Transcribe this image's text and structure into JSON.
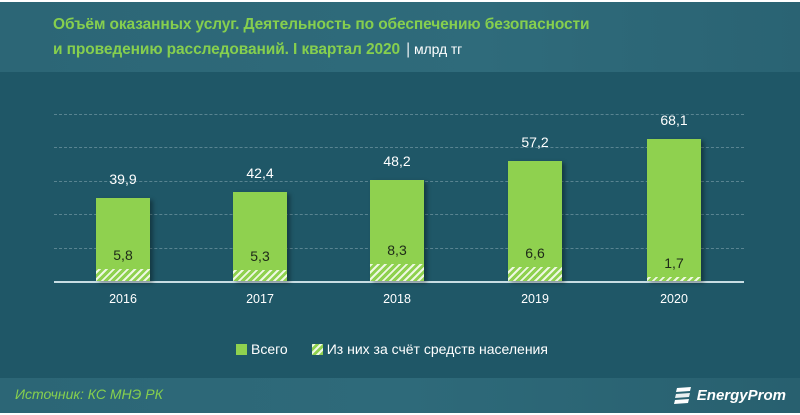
{
  "header": {
    "title_line1": "Объём оказанных услуг. Деятельность по обеспечению безопасности",
    "title_line2": "и проведению расследований. I квартал 2020",
    "unit_separator": "|",
    "unit": "млрд тг"
  },
  "legend": {
    "items": [
      {
        "label": "Всего",
        "style": "solid"
      },
      {
        "label": "Из них за счёт средств населения",
        "style": "hatched"
      }
    ]
  },
  "footer": {
    "source": "Источник: КС МНЭ РК",
    "brand": "EnergyProm",
    "brand_icon": "energyprom-logo-icon"
  },
  "colors": {
    "background": "#1f5767",
    "header_band": "#2e6a7a",
    "bar_fill": "#8fd14f",
    "title_text": "#86cf4e",
    "label_text": "#ffffff"
  },
  "chart_data": {
    "type": "bar",
    "title": "Объём оказанных услуг. Деятельность по обеспечению безопасности и проведению расследований. I квартал 2020",
    "unit": "млрд тг",
    "xlabel": "",
    "ylabel": "",
    "categories": [
      "2016",
      "2017",
      "2018",
      "2019",
      "2020"
    ],
    "series": [
      {
        "name": "Всего",
        "values": [
          39.9,
          42.4,
          48.2,
          57.2,
          68.1
        ],
        "labels": [
          "39,9",
          "42,4",
          "48,2",
          "57,2",
          "68,1"
        ]
      },
      {
        "name": "Из них за счёт средств населения",
        "values": [
          5.8,
          5.3,
          8.3,
          6.6,
          1.7
        ],
        "labels": [
          "5,8",
          "5,3",
          "8,3",
          "6,6",
          "1,7"
        ]
      }
    ],
    "overlay": "second series drawn as hatched segment at the base of each total bar",
    "ylim": [
      0,
      80
    ],
    "grid": true,
    "grid_style": "dashed horizontal",
    "y_axis_visible": false,
    "legend_position": "bottom"
  }
}
